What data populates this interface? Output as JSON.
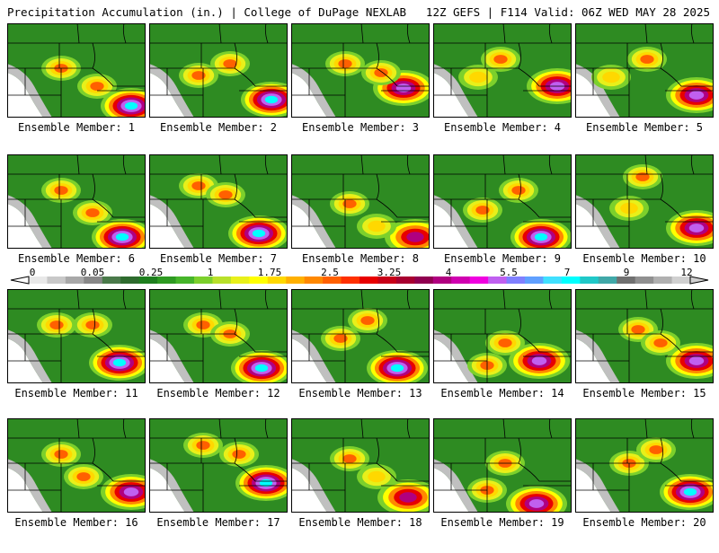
{
  "header": {
    "title_left": "Precipitation Accumulation (in.) | College of DuPage NEXLAB",
    "title_right": "12Z GEFS | F114 Valid: 06Z WED MAY 28 2025"
  },
  "colorbar": {
    "tick_labels": [
      "0",
      "0.05",
      "0.25",
      "1",
      "1.75",
      "2.5",
      "3.25",
      "4",
      "5.5",
      "7",
      "9",
      "12"
    ],
    "colors": [
      "#e8e8e8",
      "#c8c8c8",
      "#a8a8a8",
      "#888888",
      "#4a7a4a",
      "#2e6b2e",
      "#1f7f1f",
      "#2e9a22",
      "#46b52a",
      "#7cd02c",
      "#b8e02a",
      "#e8f01a",
      "#ffff00",
      "#ffd800",
      "#ffb000",
      "#ff8800",
      "#ff6000",
      "#ff3000",
      "#e80000",
      "#c80018",
      "#a80030",
      "#900050",
      "#b00080",
      "#d000b0",
      "#f000e0",
      "#c060f0",
      "#8080ff",
      "#60a0ff",
      "#40e0ff",
      "#00ffff",
      "#20c8c8",
      "#40a8a8",
      "#707070",
      "#909090",
      "#b0b0b0",
      "#d0d0d0"
    ]
  },
  "members": [
    {
      "label": "Ensemble Member: 1"
    },
    {
      "label": "Ensemble Member: 2"
    },
    {
      "label": "Ensemble Member: 3"
    },
    {
      "label": "Ensemble Member: 4"
    },
    {
      "label": "Ensemble Member: 5"
    },
    {
      "label": "Ensemble Member: 6"
    },
    {
      "label": "Ensemble Member: 7"
    },
    {
      "label": "Ensemble Member: 8"
    },
    {
      "label": "Ensemble Member: 9"
    },
    {
      "label": "Ensemble Member: 10"
    },
    {
      "label": "Ensemble Member: 11"
    },
    {
      "label": "Ensemble Member: 12"
    },
    {
      "label": "Ensemble Member: 13"
    },
    {
      "label": "Ensemble Member: 14"
    },
    {
      "label": "Ensemble Member: 15"
    },
    {
      "label": "Ensemble Member: 16"
    },
    {
      "label": "Ensemble Member: 17"
    },
    {
      "label": "Ensemble Member: 18"
    },
    {
      "label": "Ensemble Member: 19"
    },
    {
      "label": "Ensemble Member: 20"
    }
  ]
}
